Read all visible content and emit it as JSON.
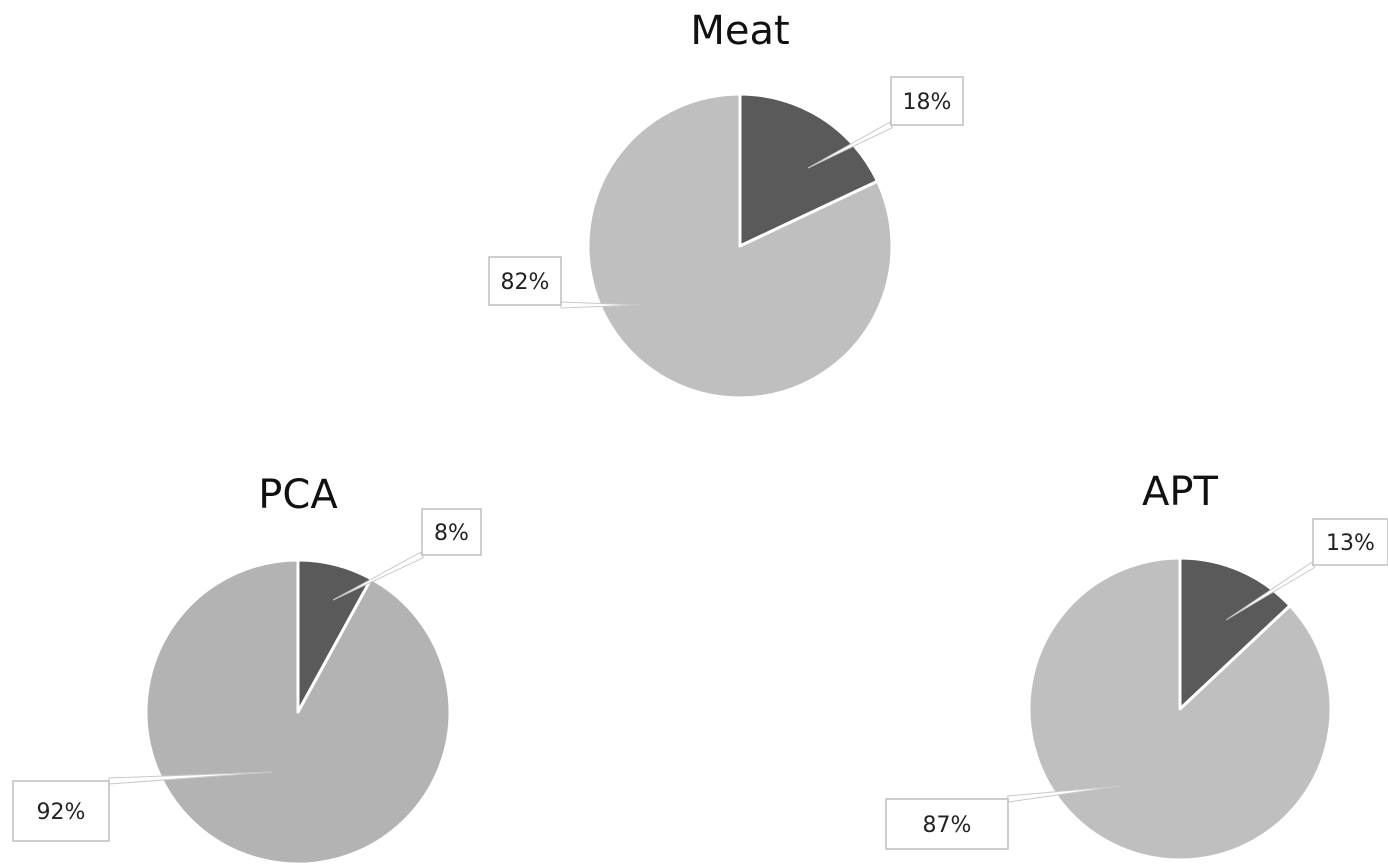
{
  "chart_data": [
    {
      "type": "pie",
      "title": "Meat",
      "slices": [
        {
          "value": 18,
          "label": "18%",
          "color": "#5a5a5a"
        },
        {
          "value": 82,
          "label": "82%",
          "color": "#bfbfbf"
        }
      ]
    },
    {
      "type": "pie",
      "title": "PCA",
      "slices": [
        {
          "value": 8,
          "label": "8%",
          "color": "#5a5a5a"
        },
        {
          "value": 92,
          "label": "92%",
          "color": "#b3b3b3"
        }
      ]
    },
    {
      "type": "pie",
      "title": "APT",
      "slices": [
        {
          "value": 13,
          "label": "13%",
          "color": "#5a5a5a"
        },
        {
          "value": 87,
          "label": "87%",
          "color": "#bfbfbf"
        }
      ]
    }
  ]
}
